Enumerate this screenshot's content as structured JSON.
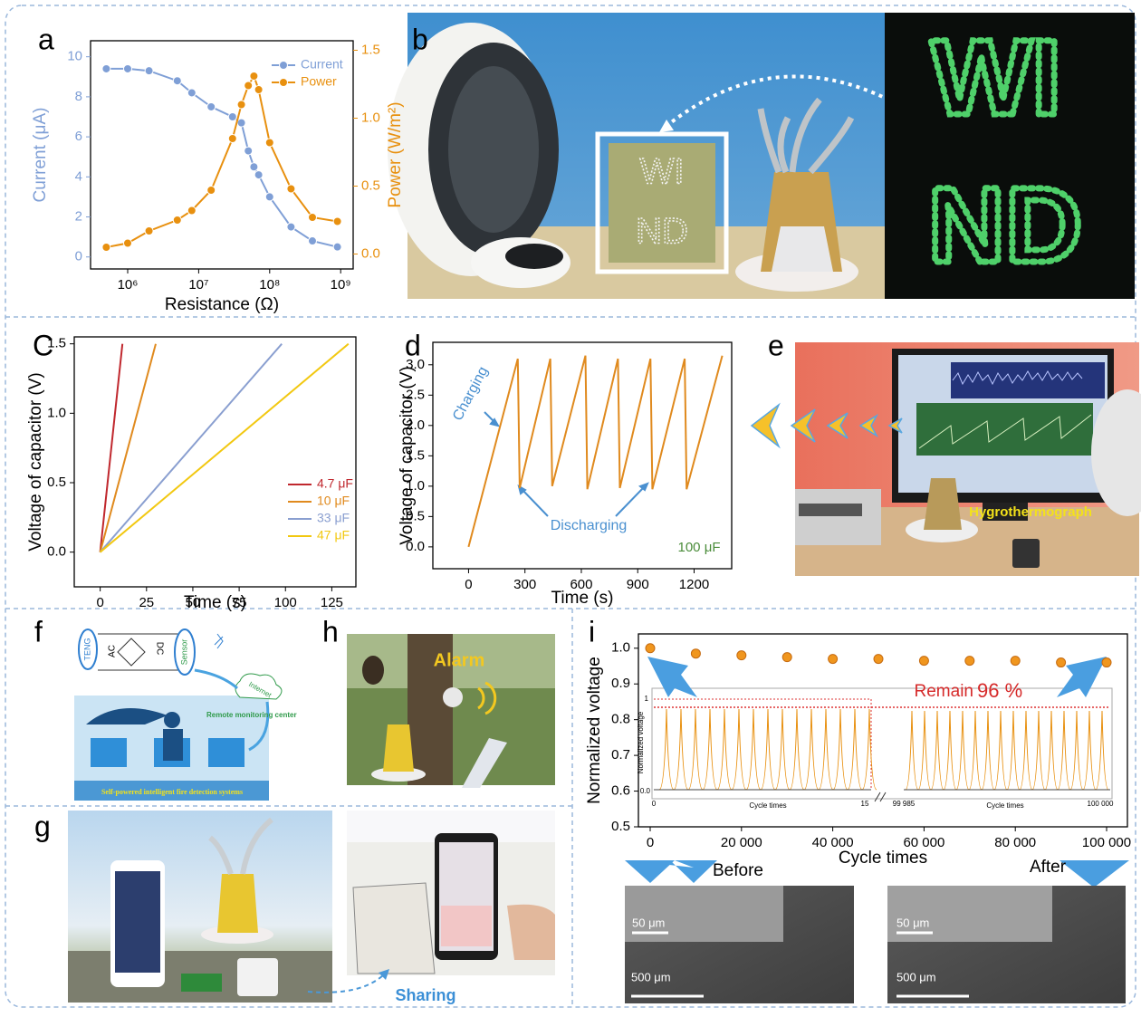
{
  "panel_labels": [
    "a",
    "b",
    "C",
    "d",
    "e",
    "f",
    "g",
    "h",
    "i"
  ],
  "chart_data": [
    {
      "type": "line",
      "xlabel": "Resistance (Ω)",
      "ylabel": "Current (μA)",
      "y2label": "Power (W/m²)",
      "xscale": "log",
      "x": [
        500000,
        1000000,
        2000000,
        5000000,
        8000000,
        15000000,
        30000000,
        40000000,
        50000000,
        60000000,
        70000000,
        100000000,
        200000000,
        400000000,
        900000000
      ],
      "xlim": [
        300000,
        1500000000
      ],
      "xticks": [
        {
          "value": 1000000,
          "label": "10⁶"
        },
        {
          "value": 10000000,
          "label": "10⁷"
        },
        {
          "value": 100000000,
          "label": "10⁸"
        },
        {
          "value": 1000000000,
          "label": "10⁹"
        }
      ],
      "ylim": [
        -0.6,
        10.8
      ],
      "yticks": [
        0,
        2,
        4,
        6,
        8,
        10
      ],
      "y2lim": [
        -0.11,
        1.57
      ],
      "y2ticks": [
        {
          "value": 0,
          "label": "0.0"
        },
        0.5,
        {
          "value": 1,
          "label": "1.0"
        },
        1.5
      ],
      "legend": "upper right",
      "series": [
        {
          "name": "Current",
          "color": "#7f9fd6",
          "marker": "circle",
          "values": [
            9.4,
            9.4,
            9.3,
            8.8,
            8.2,
            7.5,
            7.0,
            6.7,
            5.3,
            4.5,
            4.1,
            3.0,
            1.5,
            0.8,
            0.5
          ]
        },
        {
          "name": "Power",
          "color": "#e8900f",
          "marker": "circle",
          "axis": "y2",
          "values": [
            0.05,
            0.08,
            0.17,
            0.25,
            0.32,
            0.47,
            0.85,
            1.1,
            1.24,
            1.31,
            1.21,
            0.82,
            0.48,
            0.27,
            0.24
          ]
        }
      ]
    },
    {
      "type": "line",
      "xlabel": "Time (s)",
      "ylabel": "Voltage of capacitor (V)",
      "xlim": [
        -14,
        138
      ],
      "xticks": [
        0,
        25,
        50,
        75,
        100,
        125
      ],
      "ylim": [
        -0.25,
        1.55
      ],
      "yticks": [
        {
          "value": 0,
          "label": "0.0"
        },
        0.5,
        {
          "value": 1,
          "label": "1.0"
        },
        1.5
      ],
      "legend": "lower right",
      "series": [
        {
          "name": "4.7 μF",
          "color": "#c0282e",
          "x": [
            0,
            12
          ],
          "values": [
            0,
            1.5
          ]
        },
        {
          "name": "10 μF",
          "color": "#e08a1e",
          "x": [
            0,
            30
          ],
          "values": [
            0,
            1.5
          ]
        },
        {
          "name": "33 μF",
          "color": "#8a9fd0",
          "x": [
            0,
            98
          ],
          "values": [
            0,
            1.5
          ]
        },
        {
          "name": "47 μF",
          "color": "#f2c811",
          "x": [
            0,
            134
          ],
          "values": [
            0,
            1.5
          ]
        }
      ]
    },
    {
      "type": "line",
      "xlabel": "Time (s)",
      "ylabel": "Voltage of capacitor (V)",
      "x": [
        0,
        262,
        272,
        435,
        445,
        622,
        632,
        795,
        805,
        968,
        978,
        1150,
        1160,
        1350
      ],
      "xlim": [
        -190,
        1400
      ],
      "xticks": [
        0,
        300,
        600,
        900,
        1200
      ],
      "ylim": [
        -0.36,
        3.37
      ],
      "yticks": [
        {
          "value": 0,
          "label": "0.0"
        },
        0.5,
        {
          "value": 1,
          "label": "1.0"
        },
        1.5,
        {
          "value": 2,
          "label": "2.0"
        },
        2.5,
        {
          "value": 3,
          "label": "3.0"
        }
      ],
      "annotations": [
        "Charging",
        "Discharging",
        "100 μF"
      ],
      "series": [
        {
          "color": "#e08a1e",
          "values": [
            0,
            3.1,
            0.97,
            3.1,
            1.0,
            3.15,
            0.95,
            3.1,
            0.97,
            3.1,
            0.95,
            3.1,
            0.95,
            3.15
          ]
        }
      ]
    },
    {
      "type": "scatter",
      "xlabel": "Cycle times",
      "ylabel": "Normalized voltage",
      "x": [
        0,
        10000,
        20000,
        30000,
        40000,
        50000,
        60000,
        70000,
        80000,
        90000,
        100000
      ],
      "xlim": [
        -2580,
        104560
      ],
      "xticks": [
        0,
        {
          "value": 20000,
          "label": "20 000"
        },
        {
          "value": 40000,
          "label": "40 000"
        },
        {
          "value": 60000,
          "label": "60 000"
        },
        {
          "value": 80000,
          "label": "80 000"
        },
        {
          "value": 100000,
          "label": "100 000"
        }
      ],
      "ylim": [
        0.5,
        1.04
      ],
      "yticks": [
        0.5,
        0.6,
        0.7,
        0.8,
        0.9,
        {
          "value": 1,
          "label": "1.0"
        }
      ],
      "annotations": [
        "Remain",
        "96 %"
      ],
      "inset": {
        "xlabel": "Cycle times",
        "ylabel": "Normalized voltage",
        "texts": [
          "1",
          "0.0",
          "0",
          "15",
          "99 985",
          "100 000"
        ]
      },
      "series": [
        {
          "color": "#f0961e",
          "values": [
            1.0,
            0.985,
            0.98,
            0.975,
            0.97,
            0.97,
            0.965,
            0.965,
            0.965,
            0.96,
            0.96
          ]
        }
      ]
    }
  ],
  "photos": {
    "b": [
      "WI",
      "ND"
    ],
    "e": [
      "Hygrothermograph"
    ],
    "f": [
      "TENG",
      "AC",
      "DC",
      "Sensor",
      "Internet",
      "Remote monitoring center",
      "Self-powered intelligent fire detection systems"
    ],
    "h": [
      "Alarm"
    ],
    "g": [
      "Sharing"
    ],
    "i": [
      "Before",
      "After",
      "50 μm",
      "500 μm",
      "50 μm",
      "500 μm"
    ]
  }
}
